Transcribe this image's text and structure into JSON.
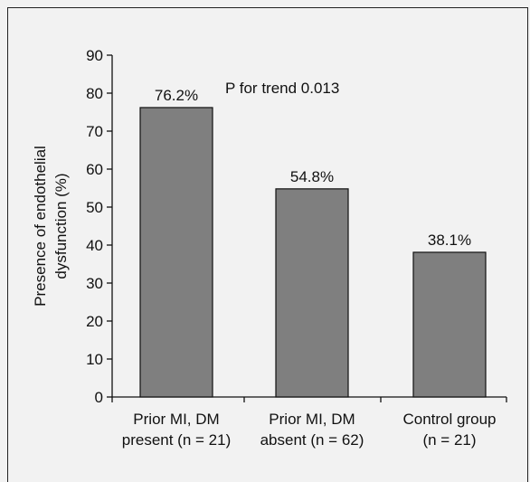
{
  "chart_data": {
    "type": "bar",
    "categories": [
      [
        "Prior MI, DM",
        "present (n = 21)"
      ],
      [
        "Prior MI, DM",
        "absent (n = 62)"
      ],
      [
        "Control group",
        "(n = 21)"
      ]
    ],
    "values": [
      76.2,
      54.8,
      38.1
    ],
    "data_labels": [
      "76.2%",
      "54.8%",
      "38.1%"
    ],
    "title": "",
    "xlabel": "",
    "ylabel": [
      "Presence of endothelial",
      "dysfunction (%)"
    ],
    "ylim": [
      0,
      90
    ],
    "yticks": [
      0,
      10,
      20,
      30,
      40,
      50,
      60,
      70,
      80,
      90
    ],
    "annotation": "P for trend 0.013",
    "grid": false,
    "legend": "none",
    "colors": {
      "bar": "#7f7f7f",
      "bar_edge": "#111111",
      "axis": "#111111",
      "background": "#f2f2f2"
    }
  }
}
